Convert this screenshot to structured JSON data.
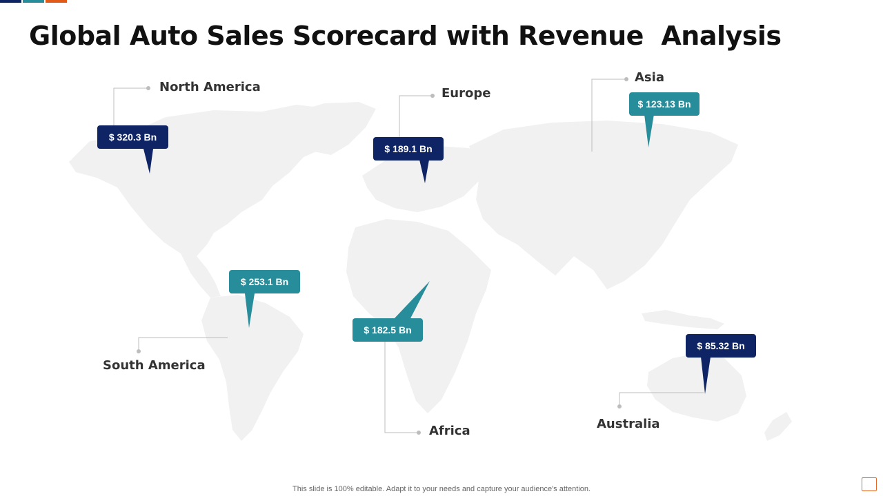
{
  "title": "Global Auto Sales Scorecard with Revenue  Analysis",
  "colors": {
    "navy": "#0e2464",
    "teal": "#278d9a",
    "orange": "#e25a17",
    "land": "#f1f1f1",
    "leader": "#bdbdbd"
  },
  "regions": {
    "north_america": {
      "name": "North America",
      "value": "$ 320.3 Bn"
    },
    "europe": {
      "name": "Europe",
      "value": "$ 189.1 Bn"
    },
    "asia": {
      "name": "Asia",
      "value": "$ 123.13 Bn"
    },
    "south_america": {
      "name": "South America",
      "value": "$ 253.1 Bn"
    },
    "africa": {
      "name": "Africa",
      "value": "$ 182.5 Bn"
    },
    "australia": {
      "name": "Australia",
      "value": "$ 85.32 Bn"
    }
  },
  "footer": "This slide is 100% editable. Adapt it to your needs and capture your audience's attention."
}
